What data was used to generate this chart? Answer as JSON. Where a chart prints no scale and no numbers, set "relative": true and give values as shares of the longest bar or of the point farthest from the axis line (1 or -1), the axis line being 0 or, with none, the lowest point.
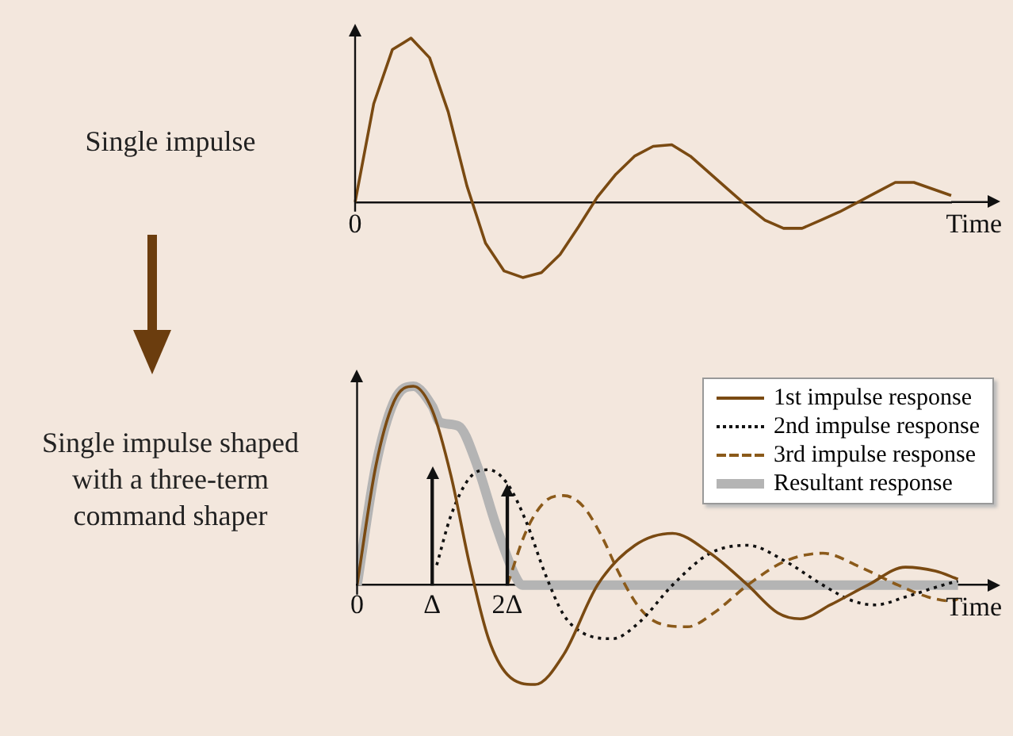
{
  "chart_data": [
    {
      "type": "line",
      "title": "Single impulse",
      "xlabel": "Time",
      "relative": true,
      "annotations": [
        "0"
      ],
      "marker": "none",
      "series": [
        {
          "color": "#7a4a12",
          "values": [
            0,
            0.6,
            0.93,
            1,
            0.88,
            0.55,
            0.1,
            -0.25,
            -0.42,
            -0.46,
            -0.43,
            -0.32,
            -0.15,
            0.03,
            0.17,
            0.28,
            0.34,
            0.35,
            0.28,
            0.18,
            0.08,
            -0.02,
            -0.11,
            -0.16,
            -0.16,
            -0.11,
            -0.06,
            0,
            0.06,
            0.12,
            0.12,
            0.08,
            0.04
          ]
        }
      ],
      "categories": [
        null,
        null,
        null,
        null,
        null,
        null,
        null,
        null,
        null,
        null,
        null,
        null,
        null,
        null,
        null,
        null,
        null,
        null,
        null,
        null,
        null,
        null,
        null,
        null,
        null,
        null,
        null,
        null,
        null,
        null,
        null,
        null,
        null
      ]
    },
    {
      "type": "line",
      "title": "Single impulse shaped with a three-term command shaper",
      "xlabel": "Time",
      "relative": true,
      "xlim": [
        0,
        8.5
      ],
      "xticks": [
        {
          "value": 0,
          "label": "0"
        },
        {
          "value": 1,
          "label": "Δ"
        },
        {
          "value": 2,
          "label": "2Δ"
        }
      ],
      "marker": "none",
      "legend": "top right",
      "series": [
        {
          "name": "1st impulse response",
          "color": "#7a4a12",
          "line_style": "solid",
          "x": [
            0,
            0.25,
            0.5,
            0.75,
            1.0,
            1.25,
            1.5,
            1.75,
            2.0,
            2.37,
            2.75,
            3.2,
            3.7,
            4.2,
            4.7,
            5.2,
            5.6,
            5.9,
            6.3,
            6.8,
            7.3,
            7.7,
            8.0
          ],
          "values": [
            0,
            0.6,
            0.93,
            1,
            0.88,
            0.55,
            0.1,
            -0.27,
            -0.45,
            -0.5,
            -0.35,
            0,
            0.2,
            0.26,
            0.16,
            0,
            -0.14,
            -0.17,
            -0.1,
            0,
            0.09,
            0.07,
            0.03
          ]
        },
        {
          "name": "2nd impulse response",
          "color": "#111111",
          "line_style": "dotted",
          "x": [
            1.06,
            1.25,
            1.5,
            1.75,
            2.0,
            2.25,
            2.5,
            2.75,
            3.0,
            3.4,
            3.75,
            4.2,
            4.7,
            5.2,
            5.7,
            6.2,
            6.6,
            6.9,
            7.3,
            7.8,
            8.0
          ],
          "values": [
            0.1,
            0.35,
            0.54,
            0.58,
            0.51,
            0.32,
            0.06,
            -0.15,
            -0.24,
            -0.27,
            -0.19,
            0,
            0.16,
            0.2,
            0.12,
            0,
            -0.08,
            -0.1,
            -0.06,
            0,
            0.02
          ]
        },
        {
          "name": "3rd impulse response",
          "color": "#8b5a1a",
          "line_style": "dashed",
          "x": [
            2,
            2.25,
            2.5,
            2.75,
            3.0,
            3.25,
            3.5,
            3.75,
            4.0,
            4.4,
            4.75,
            5.2,
            5.7,
            6.2,
            6.7,
            7.2,
            7.6,
            7.9,
            8.0
          ],
          "values": [
            0,
            0.27,
            0.42,
            0.45,
            0.4,
            0.25,
            0.05,
            -0.11,
            -0.19,
            -0.21,
            -0.14,
            0,
            0.12,
            0.16,
            0.09,
            0,
            -0.06,
            -0.08,
            -0.07
          ]
        },
        {
          "name": "Resultant response",
          "color": "#b4b4b4",
          "line_style": "solid",
          "x": [
            0,
            0.25,
            0.5,
            0.75,
            1.0,
            1.1,
            1.35,
            1.6,
            1.85,
            2.1,
            2.2,
            8.0
          ],
          "values": [
            0,
            0.6,
            0.93,
            1,
            0.9,
            0.82,
            0.8,
            0.6,
            0.3,
            0.05,
            0,
            0
          ]
        },
        {
          "type": "bar",
          "color": "#111111",
          "x": [
            1,
            2
          ],
          "values": [
            0.54,
            0.45
          ]
        }
      ]
    }
  ]
}
